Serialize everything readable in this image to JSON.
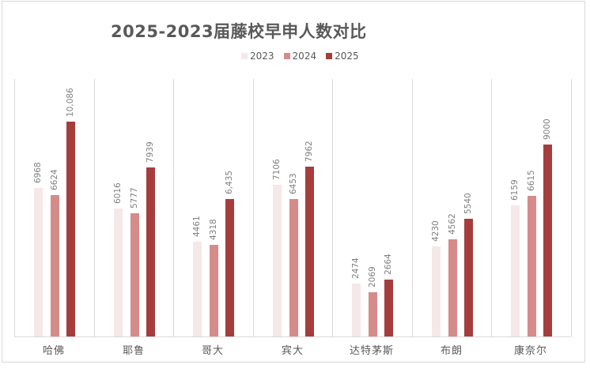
{
  "chart_data": {
    "type": "bar",
    "title": "2025-2023届藤校早申人数对比",
    "categories": [
      "哈佛",
      "耶鲁",
      "哥大",
      "宾大",
      "达特茅斯",
      "布朗",
      "康奈尔"
    ],
    "series": [
      {
        "name": "2023",
        "color": "#f5e8e8",
        "values": [
          6968,
          6016,
          4461,
          7106,
          2474,
          4230,
          6159
        ],
        "labels": [
          "6968",
          "6016",
          "4461",
          "7106",
          "2474",
          "4230",
          "6159"
        ]
      },
      {
        "name": "2024",
        "color": "#d68b8b",
        "values": [
          6624,
          5777,
          4318,
          6453,
          2069,
          4562,
          6615
        ],
        "labels": [
          "6624",
          "5777",
          "4318",
          "6453",
          "2069",
          "4562",
          "6615"
        ]
      },
      {
        "name": "2025",
        "color": "#a63d3d",
        "values": [
          10086,
          7939,
          6435,
          7962,
          2664,
          5540,
          9000
        ],
        "labels": [
          "10,086",
          "7939",
          "6,435",
          "7962",
          "2664",
          "5540",
          "9000"
        ]
      }
    ],
    "xlabel": "",
    "ylabel": "",
    "ylim": [
      0,
      12000
    ],
    "grid": "vertical category separators only",
    "legend_position": "top",
    "data_labels": "rotated vertical above bars"
  },
  "legend": [
    {
      "label": "2023",
      "color": "#f5e8e8"
    },
    {
      "label": "2024",
      "color": "#d68b8b"
    },
    {
      "label": "2025",
      "color": "#a63d3d"
    }
  ]
}
